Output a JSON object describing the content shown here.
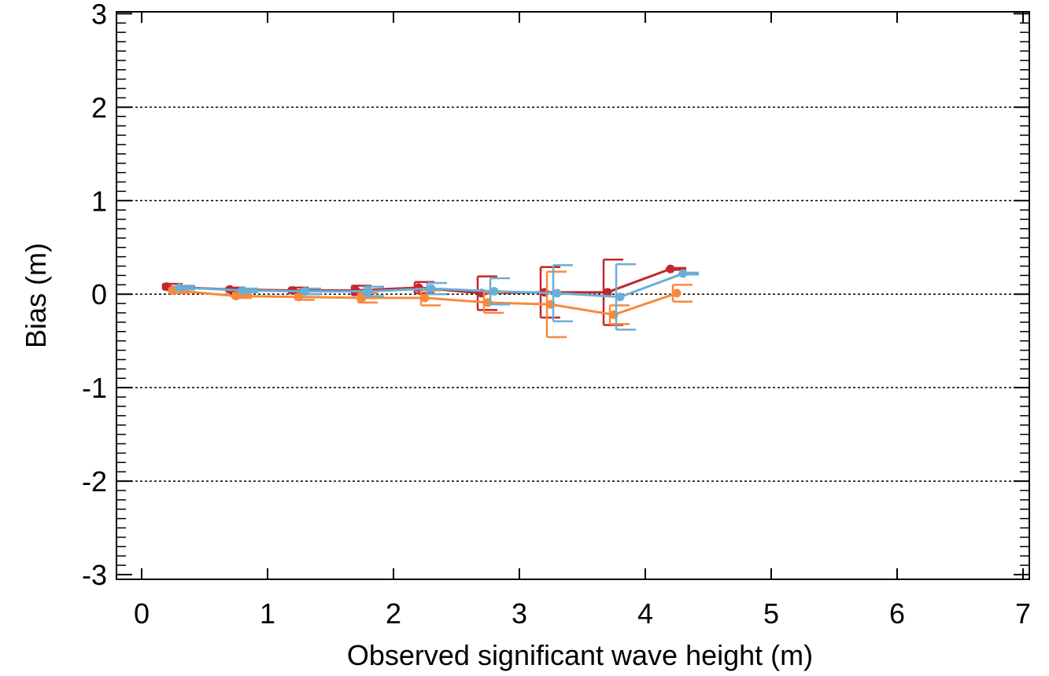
{
  "chart_data": {
    "type": "line",
    "xlabel": "Observed significant wave height (m)",
    "ylabel": "Bias (m)",
    "xlim": [
      -0.2,
      7.05
    ],
    "ylim": [
      -3.05,
      3.02
    ],
    "x_ticks": [
      0,
      1,
      2,
      3,
      4,
      5,
      6,
      7
    ],
    "y_ticks": [
      -3,
      -2,
      -1,
      0,
      1,
      2,
      3
    ],
    "x_tick_labels": [
      "0",
      "1",
      "2",
      "3",
      "4",
      "5",
      "6",
      "7"
    ],
    "y_tick_labels": [
      "-3",
      "-2",
      "-1",
      "0",
      "1",
      "2",
      "3"
    ],
    "gridlines_y": [
      -2,
      -1,
      0,
      1,
      2
    ],
    "grid_style": "dotted horizontal",
    "series": [
      {
        "color": "#c1272d",
        "x": [
          0.2,
          0.7,
          1.2,
          1.7,
          2.2,
          2.7,
          3.2,
          3.7,
          4.2
        ],
        "y": [
          0.08,
          0.05,
          0.04,
          0.04,
          0.07,
          0.01,
          0.02,
          0.02,
          0.27
        ],
        "err": [
          0.03,
          0.02,
          0.03,
          0.05,
          0.06,
          0.18,
          0.27,
          0.35,
          0.01
        ]
      },
      {
        "color": "#f7893b",
        "x": [
          0.25,
          0.75,
          1.25,
          1.75,
          2.25,
          2.75,
          3.25,
          3.75,
          4.25
        ],
        "y": [
          0.04,
          -0.02,
          -0.03,
          -0.04,
          -0.04,
          -0.09,
          -0.11,
          -0.22,
          0.01
        ],
        "err": [
          0.03,
          0.02,
          0.03,
          0.05,
          0.08,
          0.11,
          0.35,
          0.1,
          0.09
        ]
      },
      {
        "color": "#6aaed6",
        "x": [
          0.3,
          0.8,
          1.3,
          1.8,
          2.3,
          2.8,
          3.3,
          3.8,
          4.3
        ],
        "y": [
          0.07,
          0.04,
          0.03,
          0.03,
          0.06,
          0.03,
          0.01,
          -0.03,
          0.22
        ],
        "err": [
          0.02,
          0.02,
          0.03,
          0.05,
          0.06,
          0.14,
          0.3,
          0.35,
          0.01
        ]
      }
    ]
  }
}
